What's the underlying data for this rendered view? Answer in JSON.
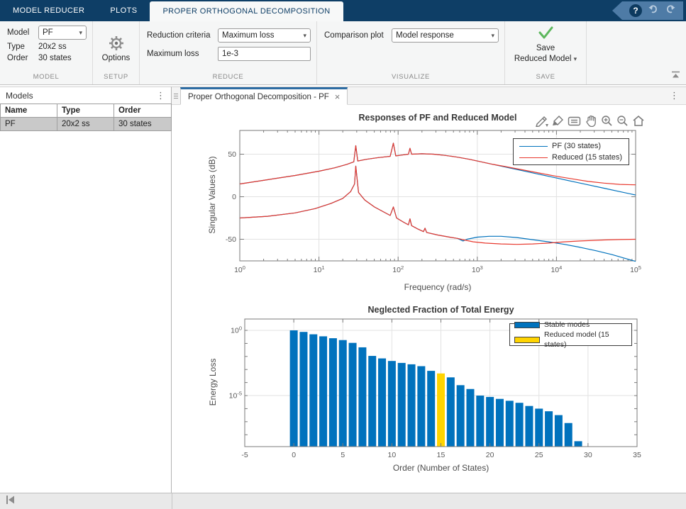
{
  "ribbon": {
    "tabs": [
      {
        "label": "MODEL REDUCER",
        "active": false
      },
      {
        "label": "PLOTS",
        "active": false
      },
      {
        "label": "PROPER ORTHOGONAL DECOMPOSITION",
        "active": true
      }
    ],
    "help_label": "?",
    "model_section": {
      "label": "MODEL",
      "model_label": "Model",
      "model_value": "PF",
      "type_label": "Type",
      "type_value": "20x2 ss",
      "order_label": "Order",
      "order_value": "30 states"
    },
    "setup_section": {
      "label": "SETUP",
      "options_label": "Options"
    },
    "reduce_section": {
      "label": "REDUCE",
      "criteria_label": "Reduction criteria",
      "criteria_value": "Maximum loss",
      "maxloss_label": "Maximum loss",
      "maxloss_value": "1e-3"
    },
    "visualize_section": {
      "label": "VISUALIZE",
      "comparison_label": "Comparison plot",
      "comparison_value": "Model response"
    },
    "save_section": {
      "label": "SAVE",
      "button_line1": "Save",
      "button_line2": "Reduced Model"
    }
  },
  "models_panel": {
    "title": "Models",
    "columns": [
      "Name",
      "Type",
      "Order"
    ],
    "rows": [
      [
        "PF",
        "20x2 ss",
        "30 states"
      ]
    ]
  },
  "document": {
    "tab_title": "Proper Orthogonal Decomposition - PF",
    "close_label": "×"
  },
  "chart_data": [
    {
      "type": "line",
      "title": "Responses of PF and Reduced Model",
      "xlabel": "Frequency (rad/s)",
      "ylabel": "Singular Values (dB)",
      "xscale": "log",
      "xlim": [
        1,
        100000
      ],
      "xticks_exponents": [
        0,
        1,
        2,
        3,
        4,
        5
      ],
      "ylim": [
        -75.4,
        77.9
      ],
      "yticks": [
        50,
        0,
        -50
      ],
      "grid": true,
      "legend_position": "northeast",
      "series": [
        {
          "name": "PF (30 states)",
          "color": "#0072BD",
          "lines": [
            [
              [
                0,
                15
              ],
              [
                0.35,
                20
              ],
              [
                0.7,
                25
              ],
              [
                1.0,
                30
              ],
              [
                1.2,
                34
              ],
              [
                1.35,
                38
              ],
              [
                1.44,
                41
              ],
              [
                1.465,
                60
              ],
              [
                1.49,
                42
              ],
              [
                1.6,
                44
              ],
              [
                1.75,
                46
              ],
              [
                1.9,
                47.5
              ],
              [
                1.94,
                63
              ],
              [
                1.97,
                48
              ],
              [
                2.05,
                49
              ],
              [
                2.13,
                50
              ],
              [
                2.15,
                57
              ],
              [
                2.17,
                50
              ],
              [
                2.3,
                50.5
              ],
              [
                2.45,
                50
              ],
              [
                2.6,
                48.5
              ],
              [
                2.75,
                46.5
              ],
              [
                2.9,
                44
              ],
              [
                3.05,
                41
              ],
              [
                3.2,
                38
              ],
              [
                3.35,
                35
              ],
              [
                3.55,
                31
              ],
              [
                3.8,
                26
              ],
              [
                4.0,
                22
              ],
              [
                4.2,
                18
              ],
              [
                4.4,
                14
              ],
              [
                4.6,
                10
              ],
              [
                4.8,
                6
              ],
              [
                5.0,
                2
              ]
            ],
            [
              [
                0,
                -25
              ],
              [
                0.35,
                -23
              ],
              [
                0.7,
                -19
              ],
              [
                0.95,
                -14
              ],
              [
                1.15,
                -8
              ],
              [
                1.3,
                -2
              ],
              [
                1.4,
                6
              ],
              [
                1.45,
                15
              ],
              [
                1.465,
                36
              ],
              [
                1.5,
                5
              ],
              [
                1.58,
                -4
              ],
              [
                1.7,
                -12
              ],
              [
                1.82,
                -18
              ],
              [
                1.9,
                -22
              ],
              [
                1.94,
                -12
              ],
              [
                1.98,
                -25
              ],
              [
                2.07,
                -30
              ],
              [
                2.13,
                -33
              ],
              [
                2.15,
                -26
              ],
              [
                2.17,
                -34
              ],
              [
                2.25,
                -38
              ],
              [
                2.32,
                -41
              ],
              [
                2.34,
                -37
              ],
              [
                2.36,
                -42
              ],
              [
                2.5,
                -45
              ],
              [
                2.65,
                -47.5
              ],
              [
                2.75,
                -49
              ],
              [
                2.82,
                -52
              ],
              [
                2.87,
                -50
              ],
              [
                3.0,
                -47.5
              ],
              [
                3.15,
                -46.5
              ],
              [
                3.3,
                -46.5
              ],
              [
                3.5,
                -48
              ],
              [
                3.7,
                -50.5
              ],
              [
                3.9,
                -53
              ],
              [
                4.1,
                -56
              ],
              [
                4.3,
                -59.5
              ],
              [
                4.5,
                -63.5
              ],
              [
                4.7,
                -68
              ],
              [
                4.85,
                -72
              ],
              [
                5.0,
                -76
              ]
            ]
          ]
        },
        {
          "name": "Reduced (15 states)",
          "color": "#E8392E",
          "lines": [
            [
              [
                0,
                15
              ],
              [
                0.35,
                20
              ],
              [
                0.7,
                25
              ],
              [
                1.0,
                30
              ],
              [
                1.2,
                34
              ],
              [
                1.35,
                38
              ],
              [
                1.44,
                41
              ],
              [
                1.465,
                60
              ],
              [
                1.49,
                42
              ],
              [
                1.6,
                44
              ],
              [
                1.75,
                46
              ],
              [
                1.9,
                47.5
              ],
              [
                1.94,
                63
              ],
              [
                1.97,
                48
              ],
              [
                2.05,
                49
              ],
              [
                2.13,
                50
              ],
              [
                2.15,
                57
              ],
              [
                2.17,
                50
              ],
              [
                2.3,
                50.5
              ],
              [
                2.45,
                50
              ],
              [
                2.6,
                48.5
              ],
              [
                2.75,
                46.5
              ],
              [
                2.9,
                44
              ],
              [
                3.05,
                41
              ],
              [
                3.2,
                38
              ],
              [
                3.35,
                35.5
              ],
              [
                3.55,
                32
              ],
              [
                3.8,
                27.5
              ],
              [
                4.0,
                24
              ],
              [
                4.2,
                21
              ],
              [
                4.4,
                18
              ],
              [
                4.6,
                16
              ],
              [
                4.8,
                14.5
              ],
              [
                5.0,
                14
              ]
            ],
            [
              [
                0,
                -25
              ],
              [
                0.35,
                -23
              ],
              [
                0.7,
                -19
              ],
              [
                0.95,
                -14
              ],
              [
                1.15,
                -8
              ],
              [
                1.3,
                -2
              ],
              [
                1.4,
                6
              ],
              [
                1.45,
                15
              ],
              [
                1.465,
                36
              ],
              [
                1.5,
                5
              ],
              [
                1.58,
                -4
              ],
              [
                1.7,
                -12
              ],
              [
                1.82,
                -18
              ],
              [
                1.9,
                -22
              ],
              [
                1.94,
                -12
              ],
              [
                1.98,
                -25
              ],
              [
                2.07,
                -30
              ],
              [
                2.13,
                -33
              ],
              [
                2.15,
                -26
              ],
              [
                2.17,
                -34
              ],
              [
                2.25,
                -38
              ],
              [
                2.32,
                -41
              ],
              [
                2.34,
                -37
              ],
              [
                2.36,
                -42
              ],
              [
                2.5,
                -45
              ],
              [
                2.65,
                -47.5
              ],
              [
                2.75,
                -49
              ],
              [
                2.82,
                -50.5
              ],
              [
                2.95,
                -53
              ],
              [
                3.1,
                -54.5
              ],
              [
                3.3,
                -55.5
              ],
              [
                3.5,
                -56
              ],
              [
                3.7,
                -55.5
              ],
              [
                3.9,
                -54.5
              ],
              [
                4.1,
                -53
              ],
              [
                4.3,
                -52
              ],
              [
                4.6,
                -50.8
              ],
              [
                4.8,
                -50.3
              ],
              [
                5.0,
                -50
              ]
            ]
          ]
        }
      ]
    },
    {
      "type": "bar",
      "title": "Neglected Fraction of Total Energy",
      "xlabel": "Order (Number of States)",
      "ylabel": "Energy Loss",
      "yscale": "log",
      "xlim": [
        -5,
        35
      ],
      "xticks": [
        -5,
        0,
        5,
        10,
        15,
        20,
        25,
        30,
        35
      ],
      "ylim_log10": [
        -8.91,
        0.87
      ],
      "ytick_exponents": [
        0,
        -5
      ],
      "grid": true,
      "categories": [
        0,
        1,
        2,
        3,
        4,
        5,
        6,
        7,
        8,
        9,
        10,
        11,
        12,
        13,
        14,
        15,
        16,
        17,
        18,
        19,
        20,
        21,
        22,
        23,
        24,
        25,
        26,
        27,
        28,
        29
      ],
      "values": [
        1,
        0.76,
        0.5,
        0.35,
        0.25,
        0.18,
        0.11,
        0.05,
        0.011,
        0.0071,
        0.0045,
        0.0032,
        0.0025,
        0.0018,
        0.00079,
        0.0005,
        0.00025,
        6.3e-05,
        3.2e-05,
        1e-05,
        7.9e-06,
        5.6e-06,
        4e-06,
        2.8e-06,
        1.6e-06,
        1e-06,
        6.3e-07,
        3.2e-07,
        7.9e-08,
        3.2e-09
      ],
      "bar_color": "#0072BD",
      "legend": [
        {
          "label": "Stable modes",
          "color": "#0072BD"
        },
        {
          "label": "Reduced model (15 states)",
          "color": "#FFD400"
        }
      ],
      "highlight": {
        "index": 15,
        "color": "#FFD400"
      }
    }
  ]
}
